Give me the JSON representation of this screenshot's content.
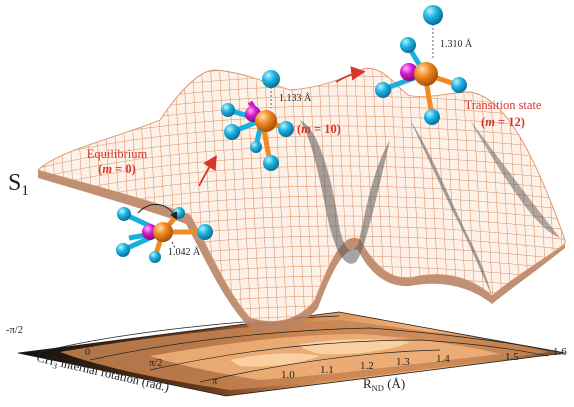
{
  "state_label": "S",
  "state_subscript": "1",
  "equilibrium": {
    "title": "Equilibrium",
    "m_prefix": "(",
    "m_var": "m",
    "m_suffix": " = 0)"
  },
  "intermediate": {
    "m_prefix": "(",
    "m_var": "m",
    "m_suffix": " = 10)"
  },
  "transition": {
    "title": "Transition state",
    "m_prefix": "(",
    "m_var": "m",
    "m_suffix": " = 12)"
  },
  "distances": [
    "1.042 Å",
    "1.133 Å",
    "1.310 Å"
  ],
  "x_axis": {
    "label_main": "R",
    "label_sub": "ND",
    "label_unit": " (Å)",
    "ticks": [
      "1.0",
      "1.1",
      "1.2",
      "1.3",
      "1.4",
      "1.5",
      "1.6"
    ]
  },
  "y_axis": {
    "label_pre": "CH",
    "label_sub": "3",
    "label_post": " internal rotation (rad.)",
    "ticks": [
      "-π/2",
      "0",
      "π/2",
      "π"
    ]
  },
  "colors": {
    "surface_mesh": "#d9936a",
    "surface_shadow": "#333333",
    "annotation": "#d9362a",
    "hydrogen": "#19b4e0",
    "carbon": "#f08a24",
    "nitrogen": "#d51bcf",
    "contour_dark": "#111111",
    "contour_light": "#f0b27a"
  }
}
